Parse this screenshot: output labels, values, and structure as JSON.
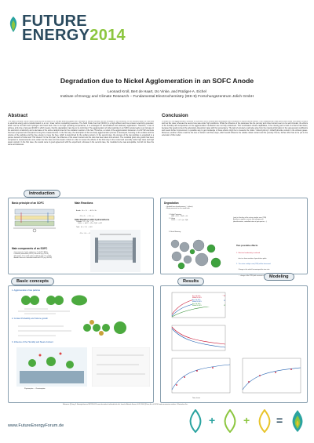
{
  "logo": {
    "word1": "FUTURE",
    "word2": "ENERGY",
    "year": "2014"
  },
  "poster": {
    "title": "Degradation due to Nickel Agglomeration in an SOFC Anode",
    "authors": "Leonard Kroll, Bert de Haart, Izo Vinke, and Rüdiger-A. Eichel",
    "institute": "Institute of Energy and Climate Research – Fundamental Electrochemistry (IEK-9) Forschungszentrum Jülich GmbH"
  },
  "abstract": {
    "heading": "Abstract",
    "text": "The basic principle, which allow reducing the emissions of climate affecting gases like methane or carbon dioxide, are an increase in the efficiency of the transformation of chemical to electrical energy and a transformation to a non / lower carbon containing resources. The Solid Oxide Fuel Cell (SOFC) is a high efficient and low emission electricity generator, which can be fed with both hydrogen and fossil fuels. Due to its high operating temperatures, it is envisaged for decentralized and stationary applications. Therefore, it has to achieve a life time of at least 40,000 h, which means, that the degradation rate has to be minimized. The agglomeration of nickel particles in an SOFC anode leads to an increase in the electronic conductivity and a decrease of the active catalytic area for the oxidation reaction of the fuel. Therefore, a model of the agglomeration behaviour of a Ni/YSZ electrode has been proposed and compared to long time measurements. In the first step, the description of the two-body agglomeration process is developed, focusing on the surface and the volume of the particles and the free energy to move the fuse, which is determined by the surface tension. In the second step, the process of the two particles is expanded to a porous network of nickel and YSZ clusters. In the third part, the influence of the steam content and the ratio has been taken into account. The modelled grain size growth has been compared to measurements once under low flux rates and low steam content in order to lessen the effects of the third step in the model and secondly under high rates and high steam content. In the first case, the results were in good agreement with the experiment, whereas in the second case, the modelled curve was acceptable, but did not have the same accurateness."
  },
  "conclusion": {
    "heading": "Conclusion",
    "text": "A model for the agglomeration process in a porous SOFC anode was developed and compared to experimental results. One measurement was performed under low steam content and low flux rates, whereas the second one was under high conditions. While the influence of the parameter like the porosity and nickel content seem to be well included, the effects of the humidity and temperature on the agglomeration mechanism are not fully understood. This combination shows capabilities, if the missing part is kind of a Nernst law factor, because this would connect the adsorption-/desorption rates with the temperature. The lack of accuracy could also arise from the missing information in the stereoscopic coefficients and needs further improvement. A possible way to get knowledge of these effects might be to measure the nickel / nickel-hydroxyl / nickel/hydroxide content in the exhaust gases. Moreover, another choice could be the loss of nickel in all three ways, which would influence the relative nickel content and the porosity. Hence, further effort has to be put to the extension of this model."
  },
  "banners": {
    "introduction": "Introduction",
    "basic_concepts": "Basic concepts",
    "results": "Results",
    "modeling": "Modeling"
  },
  "intro": {
    "basic_principle": "Basic principle of an SOFC",
    "main_reactions": "Main Reactions",
    "reactions": [
      "Anode:   H₂ + O²⁻ → H₂O + 2e⁻",
      "         CO + O²⁻ → CO₂ + e⁻",
      "Cathode: ½O₂ + 2e⁻ → O²⁻",
      "Total:   H₂ + ½O₂ → H₂O",
      "         CO + ½O₂ → CO₂"
    ],
    "side_reaction": "Side Reaction with hydrocarbons",
    "side_formula": "CₙH₂ₙ₊₂ + nH₂O → (2n + 1)H₂ + nCO",
    "components_h": "Main components of an SOFC",
    "components": [
      "Interconnector: ferritic steels (e.g. Crofer22® APU)",
      "Cathode: perovskites (LSCF) / structure (e.g. LSCF)",
      "Electrolyte: ZrO₂ (solid oxide) stabilised with Y₂O₃ (YSZ)",
      "Anode: matrix of a transition-metal and YSZ (e.g. Ni/YSZ)"
    ]
  },
  "degradation": {
    "heading": "Degradation",
    "bullets": [
      "Gradual loss of performance (→ failure)",
      "Major processes on the anode side"
    ],
    "items": [
      "1. Sulfur Poisoning",
      "2. Coking",
      "3. Nickel Sintering"
    ],
    "sulfur_formula": "(1)Ni + H₂S → Ni₃S₂ + H₂",
    "coking_formula": "CₙH₂ₙ₊₂ → nC + (n + 1)H₂",
    "notes": [
      "Lead to: blocking of the active catalytic area (TPB)",
      "Avoidance requires: precise fuel management",
      "(desulfurization, controlled ratios of gas species, ...)"
    ],
    "two_effects_h": "Two possible effects",
    "two_effects": [
      "1.  Electrical conductivity is reduced",
      "     due to a lower number of percolation paths",
      "2.  The active catalytic area (TPB) will be decreased",
      "     Change in the nickel-/zirconia-particle size ratio",
      "     → change of the TPB (with constant content angle)"
    ]
  },
  "basic": {
    "step1": "1. Agglomeration of two particles",
    "step2": "2. Contact Probability and Volume growth",
    "step3": "3. Influence of the Humidity and Steam-Content",
    "physisorption": "Physisorption → Chemisorption"
  },
  "results_legend": [
    "Exp. Ni 50%",
    "Model Ni 50%",
    "Exp. Ni 40%",
    "Model Ni 40%",
    "Exp. Ni 30%",
    "Model Ni 30%"
  ],
  "results_axes": {
    "time": "Time, hours"
  },
  "references": "References: [1] Jiang, S. Sintering behavior of Ni/Y2O3-ZrO2 cermet electrodes of solid oxide fuel cells. Journal of Materials Science, Vol 39, 2004. [2] Faes, A. et al. Ni/YSZ anode microstructure evolution. J. Electrochem. Soc.",
  "footer": {
    "url": "www.FutureEnergyForum.de",
    "plus1": "+",
    "plus2": "+",
    "equals": "="
  },
  "colors": {
    "brand_dark": "#2a4a5e",
    "brand_green": "#8cc63f",
    "drop_teal": "#2aa3a0",
    "drop_green": "#8cc63f",
    "drop_yellow": "#e8c42a"
  }
}
